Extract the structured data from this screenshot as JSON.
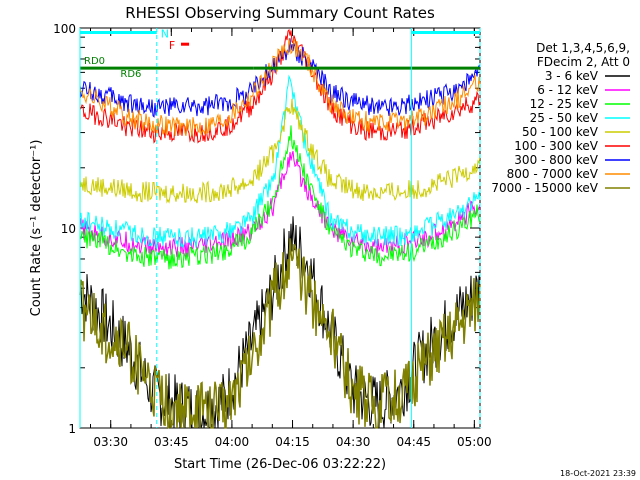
{
  "chart_data": {
    "type": "line",
    "title": "RHESSI Observing Summary Count Rates",
    "xlabel": "Start Time (26-Dec-06 03:22:22)",
    "ylabel": "Count Rate (s⁻¹ detector⁻¹)",
    "yscale": "log",
    "ylim": [
      1,
      100
    ],
    "xlim_minutes": [
      0,
      99
    ],
    "x_ticks": [
      {
        "label": "03:30",
        "min": 7.6
      },
      {
        "label": "03:45",
        "min": 22.6
      },
      {
        "label": "04:00",
        "min": 37.6
      },
      {
        "label": "04:15",
        "min": 52.6
      },
      {
        "label": "04:30",
        "min": 67.6
      },
      {
        "label": "04:45",
        "min": 82.6
      },
      {
        "label": "05:00",
        "min": 97.6
      }
    ],
    "y_ticks": [
      {
        "label": "1",
        "v": 1
      },
      {
        "label": "10",
        "v": 10
      },
      {
        "label": "100",
        "v": 100
      }
    ],
    "legend_header": [
      "Det 1,3,4,5,6,9,",
      "FDecim 2, Att 0"
    ],
    "legend_position": "right",
    "annotations": {
      "night_bar_label": "N",
      "flare_label": "F",
      "rd_labels": [
        "RD0",
        "RD6"
      ]
    },
    "series": [
      {
        "name": "3 - 6 keV",
        "color": "#000000",
        "x": [
          0,
          6,
          12,
          18,
          24,
          30,
          36,
          42,
          48,
          52,
          56,
          62,
          68,
          74,
          80,
          86,
          92,
          99
        ],
        "y": [
          5,
          3.5,
          2.5,
          1.5,
          1.3,
          1.2,
          1.4,
          2.5,
          5,
          9,
          7,
          3,
          1.5,
          1.3,
          1.6,
          2.5,
          3.5,
          5
        ]
      },
      {
        "name": "6 - 12 keV",
        "color": "#ff00ff",
        "x": [
          0,
          6,
          12,
          18,
          24,
          30,
          36,
          42,
          48,
          52,
          56,
          62,
          68,
          74,
          80,
          86,
          92,
          99
        ],
        "y": [
          10,
          9,
          8.5,
          8,
          8,
          8,
          8.5,
          9.5,
          13,
          23,
          16,
          10,
          8.5,
          8,
          8.2,
          9,
          10.5,
          13
        ]
      },
      {
        "name": "12 - 25 keV",
        "color": "#00ff00",
        "x": [
          0,
          6,
          12,
          18,
          24,
          30,
          36,
          42,
          48,
          52,
          56,
          62,
          68,
          74,
          80,
          86,
          92,
          99
        ],
        "y": [
          9,
          8.5,
          7.5,
          7,
          7,
          7.2,
          7.8,
          9,
          14,
          30,
          18,
          9.5,
          7.8,
          7.2,
          7.4,
          8.2,
          9.5,
          12
        ]
      },
      {
        "name": "25 - 50 keV",
        "color": "#00ffff",
        "x": [
          0,
          6,
          12,
          18,
          24,
          30,
          36,
          42,
          48,
          52,
          56,
          62,
          68,
          74,
          80,
          86,
          92,
          99
        ],
        "y": [
          11,
          10,
          9.5,
          9,
          9,
          9,
          9.5,
          11,
          18,
          55,
          25,
          11,
          9.5,
          9,
          9.2,
          10,
          11.5,
          14
        ]
      },
      {
        "name": "50 - 100 keV",
        "color": "#cccc00",
        "x": [
          0,
          6,
          12,
          18,
          24,
          30,
          36,
          42,
          48,
          52,
          56,
          62,
          68,
          74,
          80,
          86,
          92,
          99
        ],
        "y": [
          17,
          16,
          15.5,
          15,
          15,
          15,
          15.5,
          17,
          24,
          42,
          28,
          17,
          15.5,
          15,
          15.2,
          16,
          17.5,
          21
        ]
      },
      {
        "name": "100 - 300 keV",
        "color": "#ff0000",
        "x": [
          0,
          6,
          12,
          18,
          24,
          30,
          36,
          42,
          48,
          52,
          56,
          62,
          68,
          74,
          80,
          86,
          92,
          99
        ],
        "y": [
          38,
          36,
          32,
          30,
          30,
          30,
          32,
          40,
          60,
          92,
          70,
          40,
          32,
          30,
          31,
          34,
          38,
          44
        ]
      },
      {
        "name": "300 - 800 keV",
        "color": "#0000ff",
        "x": [
          0,
          6,
          12,
          18,
          24,
          30,
          36,
          42,
          48,
          52,
          56,
          62,
          68,
          74,
          80,
          86,
          92,
          99
        ],
        "y": [
          50,
          46,
          42,
          40,
          40,
          40,
          42,
          48,
          65,
          80,
          70,
          48,
          42,
          40,
          41,
          44,
          48,
          58
        ]
      },
      {
        "name": "800 - 7000 keV",
        "color": "#ff8c00",
        "x": [
          0,
          6,
          12,
          18,
          24,
          30,
          36,
          42,
          48,
          52,
          56,
          62,
          68,
          74,
          80,
          86,
          92,
          99
        ],
        "y": [
          48,
          42,
          36,
          33,
          32,
          32,
          35,
          45,
          65,
          85,
          70,
          42,
          35,
          33,
          34,
          37,
          42,
          55
        ]
      },
      {
        "name": "7000 - 15000 keV",
        "color": "#808000",
        "x": [
          0,
          6,
          12,
          18,
          24,
          30,
          36,
          42,
          48,
          52,
          56,
          62,
          68,
          74,
          80,
          86,
          92,
          99
        ],
        "y": [
          4,
          3,
          2.5,
          1.5,
          1.2,
          1.2,
          1.3,
          2.2,
          4.5,
          7,
          5,
          3,
          1.5,
          1.3,
          1.5,
          2.2,
          3,
          4.5
        ]
      }
    ],
    "rd_lines": [
      {
        "label": "RD0",
        "color": "#008000",
        "x": [
          0,
          43
        ],
        "y": 63
      },
      {
        "label": "RD6",
        "color": "#008000",
        "x": [
          43,
          99
        ],
        "y": 63
      }
    ],
    "night_bars": [
      {
        "color": "#00ffff",
        "x": [
          0,
          19
        ],
        "y": 95
      },
      {
        "color": "#00ffff",
        "x": [
          82,
          99
        ],
        "y": 95
      }
    ],
    "vertical_markers": [
      {
        "color": "#00ffff",
        "min": 0,
        "style": "solid"
      },
      {
        "color": "#00ffff",
        "min": 19,
        "style": "dashed"
      },
      {
        "color": "#00ffff",
        "min": 82,
        "style": "solid"
      },
      {
        "color": "#00ffff",
        "min": 99,
        "style": "dashed"
      }
    ]
  },
  "timestamp": "18-Oct-2021 23:39"
}
